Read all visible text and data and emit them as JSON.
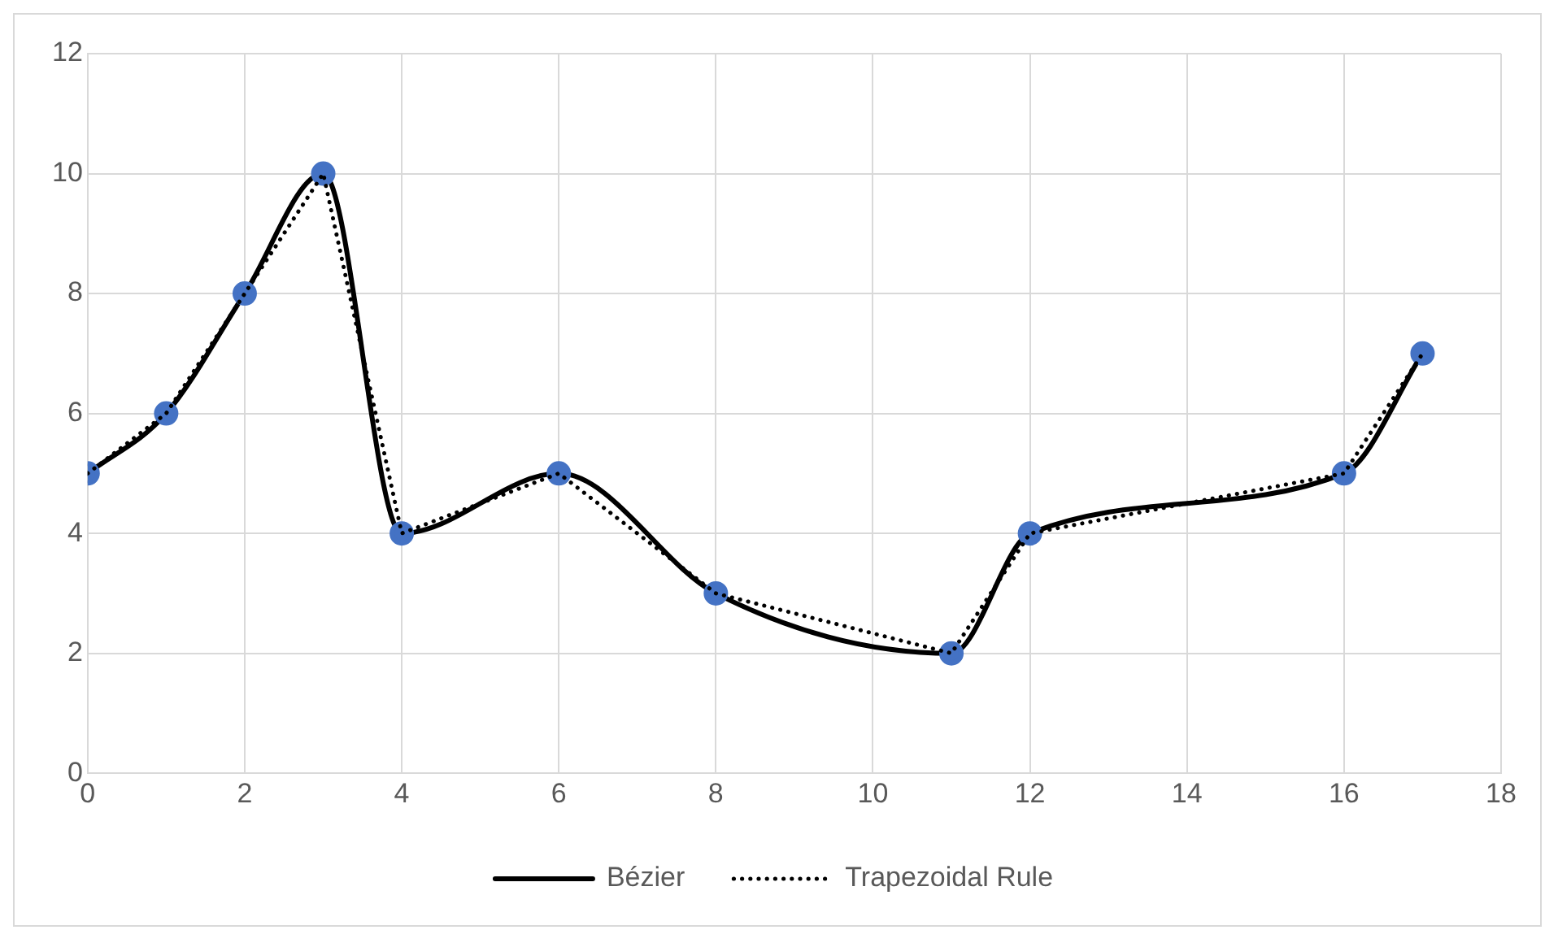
{
  "chart_data": {
    "type": "line",
    "x": [
      0,
      1,
      2,
      3,
      4,
      6,
      8,
      11,
      12,
      16,
      17
    ],
    "series": [
      {
        "name": "Bézier",
        "color": "#000000",
        "colors": [
          "#4472c4",
          "#4472c4",
          "#4472c4",
          "#4472c4",
          "#4472c4",
          "#4472c4",
          "#4472c4",
          "#4472c4",
          "#4472c4",
          "#4472c4",
          "#4472c4"
        ],
        "marker": "circle",
        "line_style": "solid",
        "values": [
          5,
          6,
          8,
          10,
          4,
          5,
          3,
          2,
          4,
          5,
          7
        ]
      },
      {
        "name": "Trapezoidal Rule",
        "color": "#000000",
        "marker": "none",
        "line_style": "dotted",
        "values": [
          5,
          6,
          8,
          10,
          4,
          5,
          3,
          2,
          4,
          5,
          7
        ]
      }
    ],
    "xlim": [
      0,
      18
    ],
    "xticks": [
      0,
      2,
      4,
      6,
      8,
      10,
      12,
      14,
      16,
      18
    ],
    "ylim": [
      0,
      12
    ],
    "yticks": [
      0,
      2,
      4,
      6,
      8,
      10,
      12
    ],
    "grid": true,
    "legend": "bottom"
  }
}
